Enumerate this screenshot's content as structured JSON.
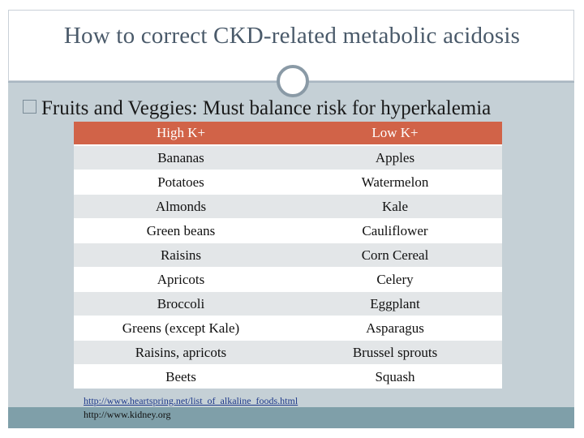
{
  "title": "How to correct CKD-related metabolic acidosis",
  "bullet": "Fruits and Veggies: Must balance risk for hyperkalemia",
  "table": {
    "headers": [
      "High K+",
      "Low K+"
    ],
    "rows": [
      [
        "Bananas",
        "Apples"
      ],
      [
        "Potatoes",
        "Watermelon"
      ],
      [
        "Almonds",
        "Kale"
      ],
      [
        "Green beans",
        "Cauliflower"
      ],
      [
        "Raisins",
        "Corn Cereal"
      ],
      [
        "Apricots",
        "Celery"
      ],
      [
        "Broccoli",
        "Eggplant"
      ],
      [
        "Greens (except Kale)",
        "Asparagus"
      ],
      [
        "Raisins, apricots",
        "Brussel sprouts"
      ],
      [
        "Beets",
        "Squash"
      ]
    ]
  },
  "references": {
    "link1": "http://www.heartspring.net/list_of_alkaline_foods.html",
    "link2": "http://www.kidney.org"
  },
  "colors": {
    "header": "#d16348",
    "content_bg": "#c5d0d6",
    "bottom_bar": "#7f9fa9"
  }
}
